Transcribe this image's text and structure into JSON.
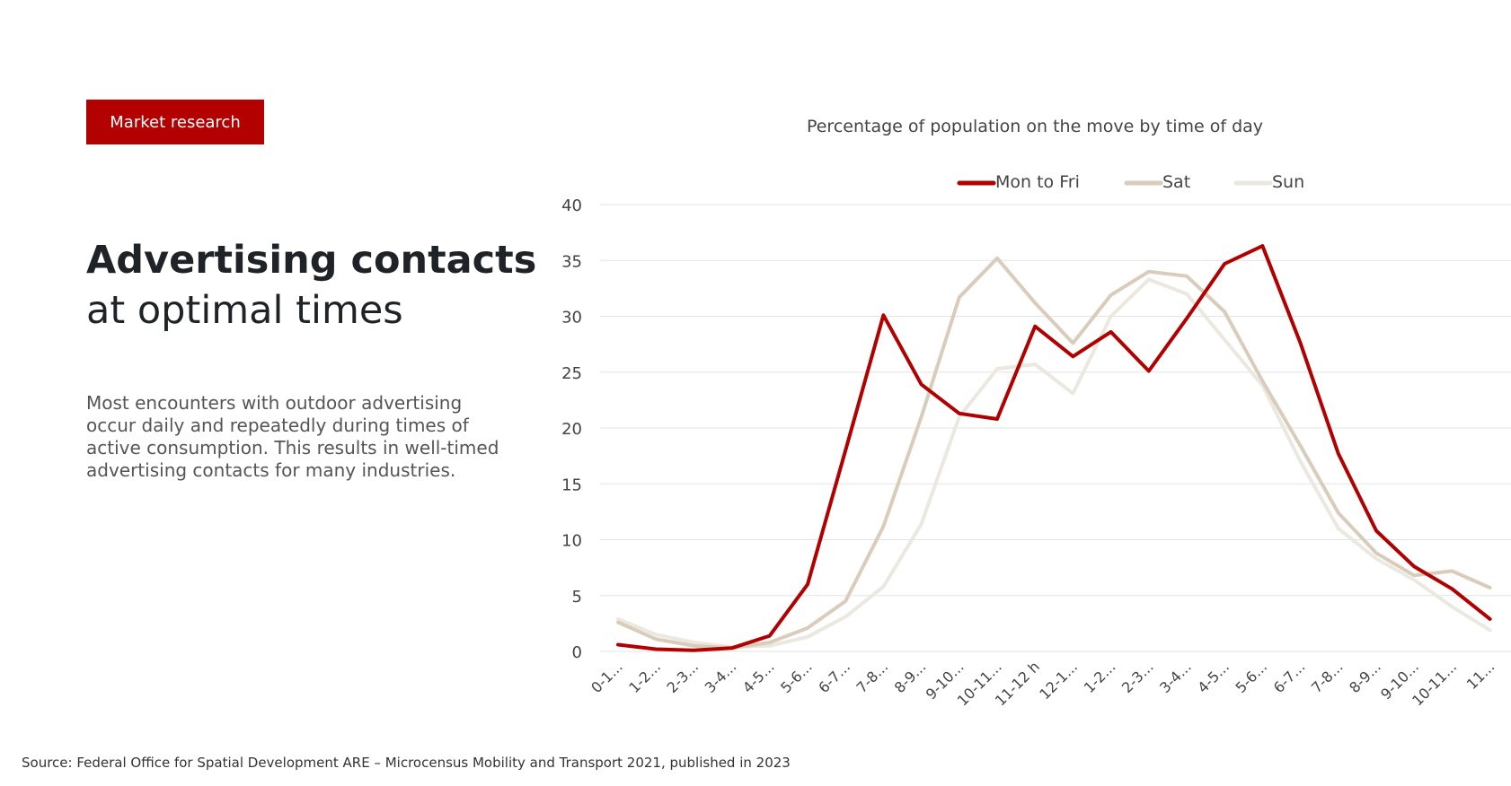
{
  "tag": {
    "label": "Market research"
  },
  "headline": {
    "bold": "Advertising contacts",
    "light": "at optimal times"
  },
  "body": {
    "text": "Most encounters with outdoor advertising occur daily and repeatedly during times of active consumption. This results in well-timed advertising contacts for many industries."
  },
  "source": {
    "text": "Source: Federal Office for Spatial Development ARE – Microcensus Mobility and Transport 2021, published in 2023"
  },
  "colors": {
    "mon_fri": "#b00000",
    "sat": "#d9ccbb",
    "sun": "#ebe8df",
    "tag_bg": "#b30000"
  },
  "chart_data": {
    "type": "line",
    "title": "Percentage of population on the move by time of day",
    "xlabel": "",
    "ylabel": "",
    "ylim": [
      0,
      40
    ],
    "yticks": [
      0,
      5,
      10,
      15,
      20,
      25,
      30,
      35,
      40
    ],
    "grid": true,
    "legend": "top-center",
    "categories": [
      "0-1...",
      "1-2...",
      "2-3...",
      "3-4...",
      "4-5...",
      "5-6...",
      "6-7...",
      "7-8...",
      "8-9...",
      "9-10...",
      "10-11...",
      "11-12 h",
      "12-1...",
      "1-2...",
      "2-3...",
      "3-4...",
      "4-5...",
      "5-6...",
      "6-7...",
      "7-8...",
      "8-9...",
      "9-10...",
      "10-11...",
      "11..."
    ],
    "series": [
      {
        "name": "Mon to Fri",
        "color": "#b00000",
        "values": [
          0.6,
          0.2,
          0.1,
          0.3,
          1.4,
          6.0,
          18.0,
          30.1,
          23.9,
          21.3,
          20.8,
          29.1,
          26.4,
          28.6,
          25.1,
          29.8,
          34.7,
          36.3,
          27.6,
          17.7,
          10.8,
          7.6,
          5.6,
          2.9
        ]
      },
      {
        "name": "Sat",
        "color": "#d9ccbb",
        "values": [
          2.6,
          1.1,
          0.5,
          0.3,
          0.8,
          2.1,
          4.5,
          11.2,
          21.0,
          31.7,
          35.2,
          31.2,
          27.6,
          31.9,
          34.0,
          33.6,
          30.4,
          24.2,
          18.4,
          12.4,
          8.8,
          6.8,
          7.2,
          5.7
        ]
      },
      {
        "name": "Sun",
        "color": "#ebe8df",
        "values": [
          2.9,
          1.5,
          0.8,
          0.4,
          0.5,
          1.3,
          3.1,
          5.8,
          11.4,
          21.0,
          25.3,
          25.7,
          23.1,
          30.0,
          33.3,
          32.0,
          27.9,
          23.8,
          17.0,
          11.0,
          8.3,
          6.4,
          4.0,
          1.9
        ]
      }
    ]
  }
}
